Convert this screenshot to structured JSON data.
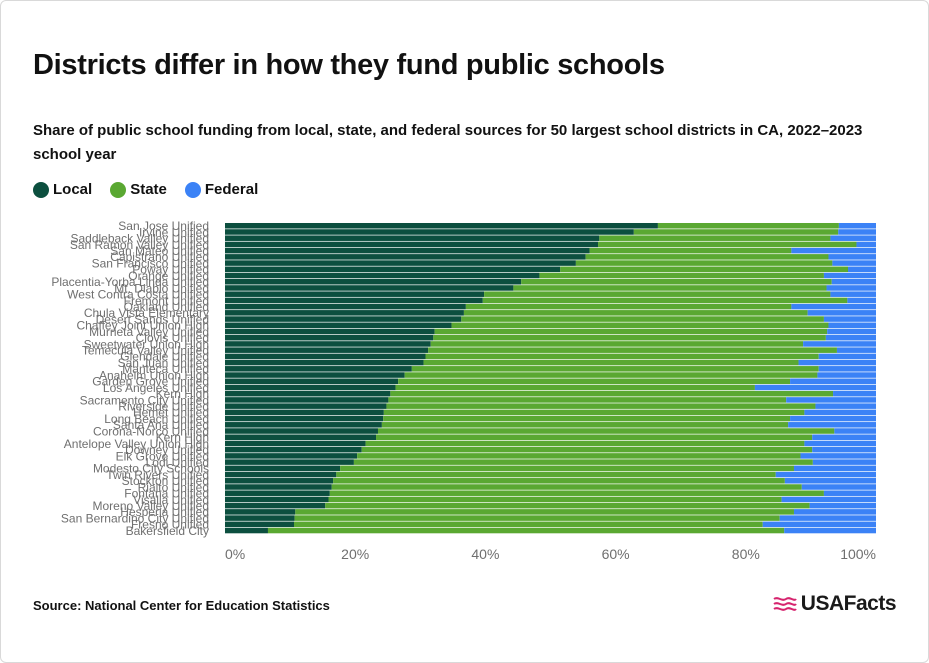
{
  "title": "Districts differ in how they fund public schools",
  "subtitle": "Share of public school funding from local, state, and federal sources for 50 largest school districts in CA, 2022–2023 school year",
  "source": "Source: National Center for Education Statistics",
  "logo_text": "USAFacts",
  "colors": {
    "local": "#0c4f3f",
    "state": "#5aa832",
    "federal": "#3b82f6",
    "axis_text": "#6f6f6f"
  },
  "chart_data": {
    "type": "bar",
    "orientation": "horizontal",
    "stacked": true,
    "xlim": [
      0,
      100
    ],
    "x_ticks": [
      "0%",
      "20%",
      "40%",
      "60%",
      "80%",
      "100%"
    ],
    "series_names": [
      "Local",
      "State",
      "Federal"
    ],
    "rows": [
      {
        "district": "San Jose Unified",
        "local": 66.5,
        "state": 27.8
      },
      {
        "district": "Irvine Unified",
        "local": 62.8,
        "state": 31.4
      },
      {
        "district": "Saddleback Valley Unified",
        "local": 57.5,
        "state": 35.5
      },
      {
        "district": "San Ramon Valley Unified",
        "local": 57.3,
        "state": 39.7
      },
      {
        "district": "San Mateo Unified",
        "local": 56.0,
        "state": 31.0
      },
      {
        "district": "Capistrano Unified",
        "local": 55.4,
        "state": 37.3
      },
      {
        "district": "San Francisco Unified",
        "local": 53.9,
        "state": 39.4
      },
      {
        "district": "Poway Unified",
        "local": 51.5,
        "state": 44.2
      },
      {
        "district": "Orange Unified",
        "local": 48.3,
        "state": 43.7
      },
      {
        "district": "Placentia-Yorba Linda Unified",
        "local": 45.5,
        "state": 47.7
      },
      {
        "district": "Mt. Diablo Unified",
        "local": 44.3,
        "state": 48.1
      },
      {
        "district": "West Contra Costa Unified",
        "local": 39.8,
        "state": 53.2
      },
      {
        "district": "Fremont Unified",
        "local": 39.6,
        "state": 56.0
      },
      {
        "district": "Oakland Unified",
        "local": 37.0,
        "state": 50.0
      },
      {
        "district": "Chula Vista Elementary",
        "local": 36.7,
        "state": 52.8
      },
      {
        "district": "Desert Sands Unified",
        "local": 36.3,
        "state": 55.7
      },
      {
        "district": "Chaffey Joint Union High",
        "local": 34.8,
        "state": 57.9
      },
      {
        "district": "Murrieta Valley Unified",
        "local": 32.2,
        "state": 60.3
      },
      {
        "district": "Clovis Unified",
        "local": 32.0,
        "state": 60.3
      },
      {
        "district": "Sweetwater Union High",
        "local": 31.6,
        "state": 57.2
      },
      {
        "district": "Temecula Valley Unified",
        "local": 31.2,
        "state": 62.8
      },
      {
        "district": "Glendale Unified",
        "local": 30.8,
        "state": 60.4
      },
      {
        "district": "San Juan Unified",
        "local": 30.5,
        "state": 57.6
      },
      {
        "district": "Manteca Unified",
        "local": 28.7,
        "state": 62.5
      },
      {
        "district": "Anaheim Union High",
        "local": 27.6,
        "state": 63.4
      },
      {
        "district": "Garden Grove Unified",
        "local": 26.6,
        "state": 60.2
      },
      {
        "district": "Los Angeles Unified",
        "local": 26.2,
        "state": 55.2
      },
      {
        "district": "Kern High",
        "local": 25.4,
        "state": 68.0
      },
      {
        "district": "Sacramento City Unified",
        "local": 25.1,
        "state": 61.1
      },
      {
        "district": "Riverside Unified",
        "local": 24.8,
        "state": 65.9
      },
      {
        "district": "Hemet Unified",
        "local": 24.4,
        "state": 64.6
      },
      {
        "district": "Long Beach Unified",
        "local": 24.3,
        "state": 62.5
      },
      {
        "district": "Santa Ana Unified",
        "local": 24.1,
        "state": 62.4
      },
      {
        "district": "Corona-Norco Unified",
        "local": 23.5,
        "state": 70.1
      },
      {
        "district": "Kern High",
        "local": 23.2,
        "state": 67.0
      },
      {
        "district": "Antelope Valley Union High",
        "local": 21.6,
        "state": 67.4
      },
      {
        "district": "Downey Unified",
        "local": 21.0,
        "state": 69.2
      },
      {
        "district": "Elk Grove Unified",
        "local": 20.3,
        "state": 68.1
      },
      {
        "district": "Lodi Unified",
        "local": 19.8,
        "state": 70.5
      },
      {
        "district": "Modesto City Schools",
        "local": 17.7,
        "state": 69.7
      },
      {
        "district": "Twin Rivers Unified",
        "local": 17.1,
        "state": 67.5
      },
      {
        "district": "Stockton Unified",
        "local": 16.6,
        "state": 69.4
      },
      {
        "district": "Rialto Unified",
        "local": 16.4,
        "state": 72.2
      },
      {
        "district": "Fontana Unified",
        "local": 16.1,
        "state": 75.9
      },
      {
        "district": "Visalia Unified",
        "local": 15.9,
        "state": 69.6
      },
      {
        "district": "Moreno Valley Unified",
        "local": 15.4,
        "state": 74.4
      },
      {
        "district": "Hesperia Unified",
        "local": 10.8,
        "state": 76.6
      },
      {
        "district": "San Bernardino City Unified",
        "local": 10.7,
        "state": 74.5
      },
      {
        "district": "Fresno Unified",
        "local": 10.6,
        "state": 72.0
      },
      {
        "district": "Bakersfield City",
        "local": 6.6,
        "state": 79.3
      }
    ]
  }
}
